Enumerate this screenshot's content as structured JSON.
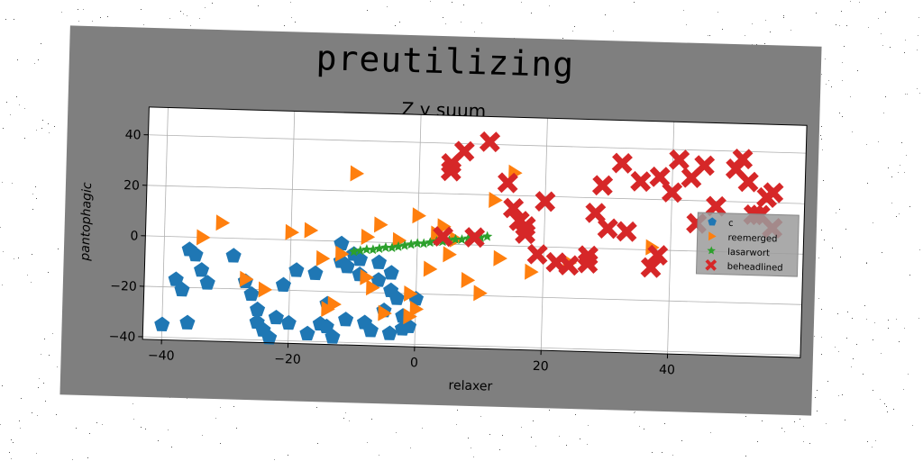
{
  "chart_data": {
    "type": "scatter",
    "title": "preutilizing",
    "subtitle": "Z y suum",
    "xlabel": "relaxer",
    "ylabel": "pantophagic",
    "xlim": [
      -43,
      61
    ],
    "ylim": [
      -41,
      51
    ],
    "xticks": [
      -40,
      -20,
      0,
      20,
      40
    ],
    "yticks": [
      -40,
      -20,
      0,
      20,
      40
    ],
    "grid": true,
    "legend_position": "right",
    "series": [
      {
        "name": "c",
        "marker": "pentagon",
        "color": "#1f77b4",
        "points": [
          [
            -40,
            -35
          ],
          [
            -38,
            -17
          ],
          [
            -37,
            -21
          ],
          [
            -36,
            -5
          ],
          [
            -35,
            -7
          ],
          [
            -34,
            -13
          ],
          [
            -33,
            -18
          ],
          [
            -36,
            -34
          ],
          [
            -29,
            -7
          ],
          [
            -27,
            -17
          ],
          [
            -26,
            -22
          ],
          [
            -25,
            -28
          ],
          [
            -25,
            -33
          ],
          [
            -24,
            -36
          ],
          [
            -23,
            -39
          ],
          [
            -22,
            -31
          ],
          [
            -21,
            -18
          ],
          [
            -20,
            -33
          ],
          [
            -19,
            -12
          ],
          [
            -17,
            -37
          ],
          [
            -16,
            -13
          ],
          [
            -15,
            -33
          ],
          [
            -14,
            -25
          ],
          [
            -14,
            -34
          ],
          [
            -13,
            -38
          ],
          [
            -12,
            -1
          ],
          [
            -12,
            -8
          ],
          [
            -11,
            -10
          ],
          [
            -11,
            -31
          ],
          [
            -10,
            -5
          ],
          [
            -9,
            -7
          ],
          [
            -9,
            -13
          ],
          [
            -8,
            -32
          ],
          [
            -6,
            -8
          ],
          [
            -6,
            -15
          ],
          [
            -5,
            -27
          ],
          [
            -4,
            -12
          ],
          [
            -4,
            -19
          ],
          [
            -4,
            -36
          ],
          [
            -3,
            -22
          ],
          [
            -2,
            -29
          ],
          [
            -1,
            -33
          ],
          [
            -2,
            -34
          ],
          [
            0,
            -22
          ],
          [
            -7,
            -35
          ]
        ]
      },
      {
        "name": "reemerged",
        "marker": "triangle-right",
        "color": "#ff7f0e",
        "points": [
          [
            -34,
            0
          ],
          [
            -31,
            6
          ],
          [
            -27,
            -16
          ],
          [
            -24,
            -20
          ],
          [
            -20,
            3
          ],
          [
            -17,
            4
          ],
          [
            -15,
            -7
          ],
          [
            -14,
            -27
          ],
          [
            -13,
            -25
          ],
          [
            -12,
            -5
          ],
          [
            -10,
            27
          ],
          [
            -8,
            2
          ],
          [
            -8,
            -14
          ],
          [
            -7,
            -18
          ],
          [
            -6,
            7
          ],
          [
            -5,
            -28
          ],
          [
            -3,
            1
          ],
          [
            -1,
            -29
          ],
          [
            -1,
            -20
          ],
          [
            0,
            11
          ],
          [
            0,
            -26
          ],
          [
            2,
            -10
          ],
          [
            3,
            4
          ],
          [
            4,
            7
          ],
          [
            5,
            -4
          ],
          [
            6,
            2
          ],
          [
            8,
            -14
          ],
          [
            10,
            -19
          ],
          [
            12,
            18
          ],
          [
            13,
            -5
          ],
          [
            15,
            29
          ],
          [
            18,
            -10
          ],
          [
            24,
            -6
          ],
          [
            37,
            1
          ]
        ]
      },
      {
        "name": "lasarwort",
        "marker": "star",
        "color": "#2ca02c",
        "points": [
          [
            -10,
            -4
          ],
          [
            -9,
            -3.5
          ],
          [
            -8,
            -3
          ],
          [
            -7,
            -3
          ],
          [
            -6,
            -2.5
          ],
          [
            -5,
            -2
          ],
          [
            -4,
            -2
          ],
          [
            -3,
            -1.5
          ],
          [
            -2,
            -1
          ],
          [
            -1,
            -0.5
          ],
          [
            0,
            0
          ],
          [
            1,
            0
          ],
          [
            2,
            0.5
          ],
          [
            3,
            1
          ],
          [
            4,
            1
          ],
          [
            5,
            1.5
          ],
          [
            6,
            2
          ],
          [
            7,
            2
          ],
          [
            8,
            2.5
          ],
          [
            9,
            3
          ],
          [
            10,
            3
          ],
          [
            11,
            3.5
          ]
        ]
      },
      {
        "name": "beheadlined",
        "marker": "x",
        "color": "#d62728",
        "points": [
          [
            4,
            3
          ],
          [
            5,
            32
          ],
          [
            5,
            29
          ],
          [
            7,
            37
          ],
          [
            9,
            3
          ],
          [
            11,
            41
          ],
          [
            14,
            25
          ],
          [
            15,
            15
          ],
          [
            16,
            10
          ],
          [
            17,
            8
          ],
          [
            17,
            5
          ],
          [
            19,
            -3
          ],
          [
            20,
            18
          ],
          [
            22,
            -6
          ],
          [
            24,
            -7
          ],
          [
            27,
            -3
          ],
          [
            27,
            -6
          ],
          [
            28,
            14
          ],
          [
            29,
            25
          ],
          [
            30,
            8
          ],
          [
            32,
            34
          ],
          [
            33,
            7
          ],
          [
            35,
            27
          ],
          [
            37,
            -7
          ],
          [
            38,
            -2
          ],
          [
            38,
            29
          ],
          [
            40,
            23
          ],
          [
            41,
            36
          ],
          [
            43,
            29
          ],
          [
            44,
            11
          ],
          [
            45,
            34
          ],
          [
            47,
            18
          ],
          [
            50,
            33
          ],
          [
            51,
            37
          ],
          [
            52,
            28
          ],
          [
            53,
            15
          ],
          [
            54,
            15
          ],
          [
            55,
            22
          ],
          [
            56,
            24
          ],
          [
            56,
            10
          ]
        ]
      }
    ]
  }
}
